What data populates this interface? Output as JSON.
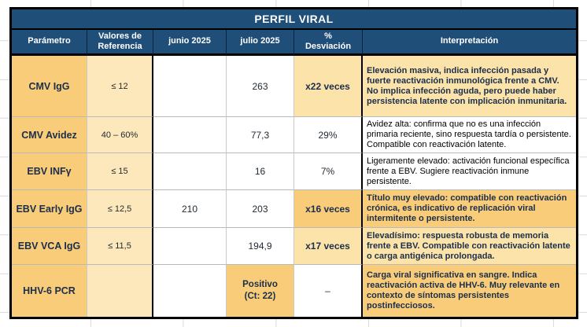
{
  "title": "PERFIL VIRAL",
  "header": {
    "parametro": "Parámetro",
    "referencia": "Valores de\nReferencia",
    "junio": "junio 2025",
    "julio": "julio 2025",
    "desviacion": "%\nDesviación",
    "interpretacion": "Interpretación"
  },
  "colors": {
    "header_blue": "#1F4E79",
    "gold": "#F8CC79",
    "cream": "#FBE3AA",
    "ref_cream": "#FCE8BA",
    "border_black": "#000000",
    "gridline_gray": "#D9D9D9"
  },
  "rows": [
    {
      "parametro": "CMV IgG",
      "referencia": "≤ 12",
      "junio": "",
      "julio": "263",
      "desviacion": "x22 veces",
      "interpretacion": "Elevación masiva, indica infección pasada y fuerte reactivación inmunológica frente a CMV. No implica infección aguda, pero puede haber persistencia latente con implicación inmunitaria.",
      "desv_highlight": "cream",
      "desv_bold": true,
      "interp_highlight": "cream",
      "interp_bold": true,
      "julio_highlight": "none",
      "julio_bold": false
    },
    {
      "parametro": "CMV Avidez",
      "referencia": "40 – 60%",
      "junio": "",
      "julio": "77,3",
      "desviacion": "29%",
      "interpretacion": "Avidez alta: confirma que no es una infección primaria reciente, sino respuesta tardía o persistente. Compatible con reactivación latente.",
      "desv_highlight": "none",
      "desv_bold": false,
      "interp_highlight": "none",
      "interp_bold": false,
      "julio_highlight": "none",
      "julio_bold": false
    },
    {
      "parametro": "EBV INFγ",
      "referencia": "≤ 15",
      "junio": "",
      "julio": "16",
      "desviacion": "7%",
      "interpretacion": "Ligeramente elevado: activación funcional específica frente a EBV. Sugiere reactivación inmune persistente.",
      "desv_highlight": "none",
      "desv_bold": false,
      "interp_highlight": "none",
      "interp_bold": false,
      "julio_highlight": "none",
      "julio_bold": false
    },
    {
      "parametro": "EBV Early IgG",
      "referencia": "≤ 12,5",
      "junio": "210",
      "julio": "203",
      "desviacion": "x16 veces",
      "interpretacion": "Título muy elevado: compatible con reactivación crónica, es indicativo de replicación viral intermitente o persistente.",
      "desv_highlight": "gold",
      "desv_bold": true,
      "interp_highlight": "gold",
      "interp_bold": true,
      "julio_highlight": "none",
      "julio_bold": false
    },
    {
      "parametro": "EBV VCA IgG",
      "referencia": "≤ 11,5",
      "junio": "",
      "julio": "194,9",
      "desviacion": "x17 veces",
      "interpretacion": "Elevadísimo: respuesta robusta de memoria frente a EBV. Compatible con reactivación latente o carga antigénica prolongada.",
      "desv_highlight": "cream",
      "desv_bold": true,
      "interp_highlight": "cream",
      "interp_bold": true,
      "julio_highlight": "none",
      "julio_bold": false
    },
    {
      "parametro": "HHV-6 PCR",
      "referencia": "",
      "junio": "",
      "julio": "Positivo\n(Ct: 22)",
      "desviacion": "–",
      "interpretacion": "Carga viral significativa en sangre. Indica reactivación activa de HHV-6. Muy relevante en contexto de síntomas persistentes postinfecciosos.",
      "desv_highlight": "none",
      "desv_bold": false,
      "interp_highlight": "gold",
      "interp_bold": true,
      "julio_highlight": "gold",
      "julio_bold": true
    }
  ]
}
